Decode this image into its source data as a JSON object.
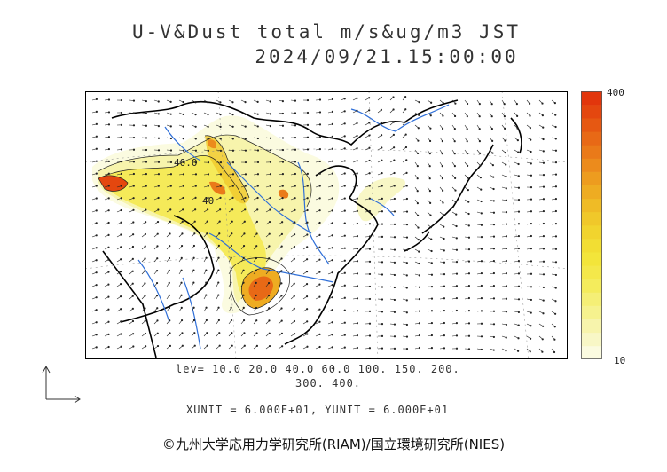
{
  "title": {
    "line1": "U-V&Dust total m/s&ug/m3 JST",
    "line2": "2024/09/21.15:00:00"
  },
  "colorbar": {
    "max_label": "400",
    "min_label": "10",
    "colors": [
      "#fbfbe0",
      "#f8f7c6",
      "#f7f4ac",
      "#f6f28e",
      "#f5ef76",
      "#f4ec5c",
      "#f4e84a",
      "#f3e53a",
      "#f2de33",
      "#f1d42e",
      "#f0c82a",
      "#efbb26",
      "#eeac22",
      "#ed9c1f",
      "#ec8b1c",
      "#ea7a19",
      "#e86916",
      "#e65812",
      "#e4470f",
      "#e2360c"
    ]
  },
  "levels": {
    "line1": "lev= 10.0 20.0 40.0 60.0 100. 150. 200.",
    "line2": "300. 400."
  },
  "units": "XUNIT = 6.000E+01, YUNIT = 6.000E+01",
  "map_labels": {
    "contour_a": "40.0",
    "contour_b": "40"
  },
  "copyright": "©九州大学応用力学研究所(RIAM)/国立環境研究所(NIES)",
  "icons": {
    "axis": "unit-vector-axis-icon"
  }
}
